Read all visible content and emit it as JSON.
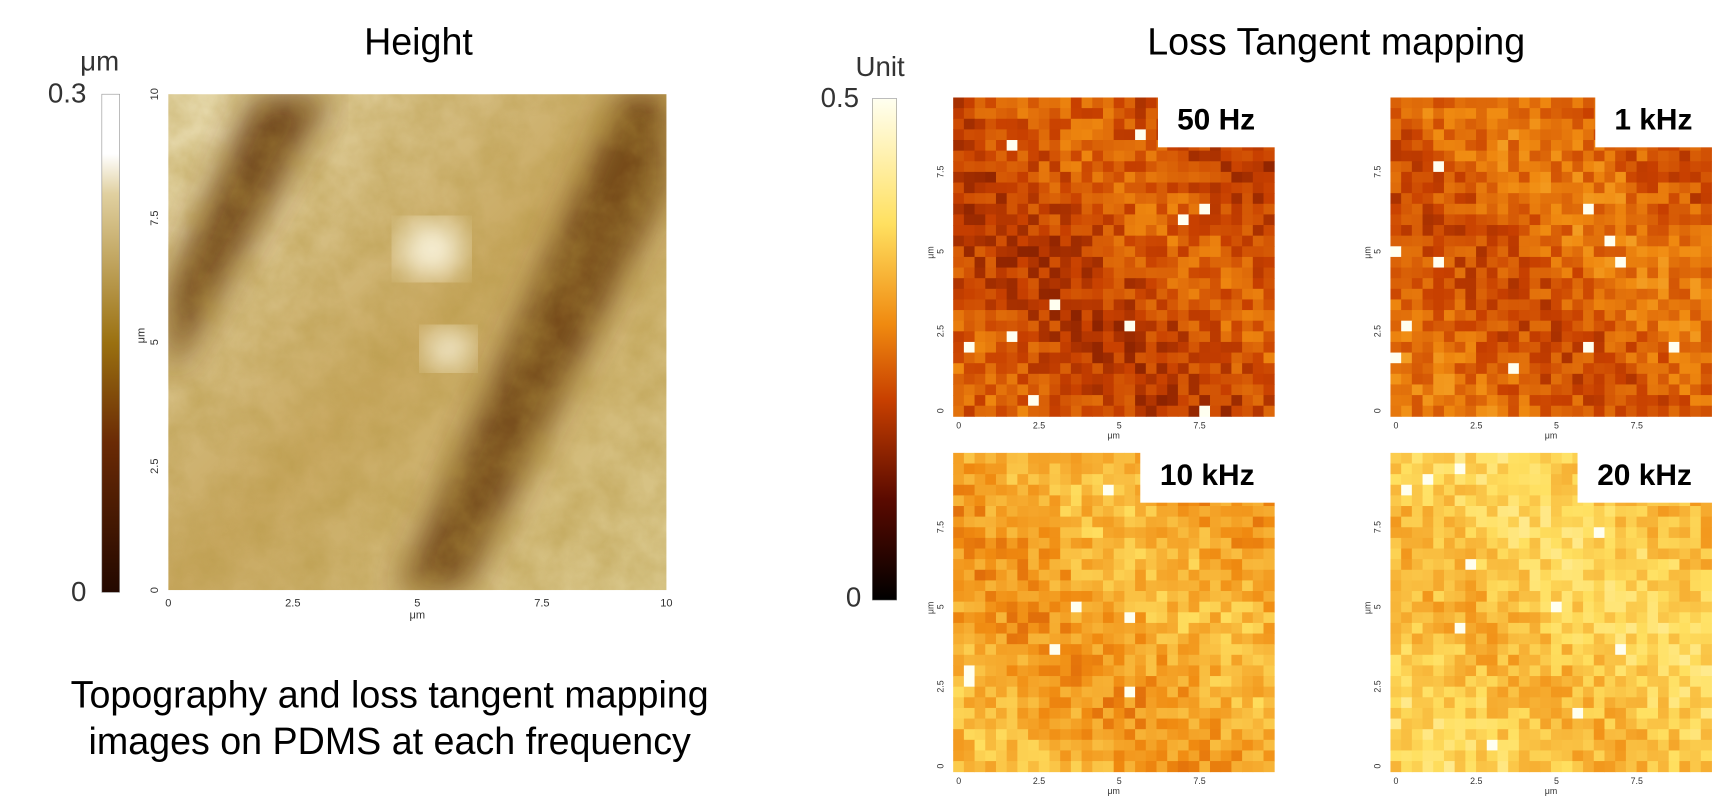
{
  "height_panel": {
    "title": "Height",
    "colorbar": {
      "unit": "μm",
      "max": "0.3",
      "min": "0"
    },
    "ticks": [
      "0",
      "2.5",
      "5",
      "7.5",
      "10"
    ],
    "x_unit": "μm",
    "y_unit": "μm"
  },
  "loss_panel": {
    "title": "Loss Tangent mapping",
    "colorbar": {
      "unit": "Unit",
      "max": "0.5",
      "min": "0"
    },
    "maps": [
      {
        "label": "50 Hz"
      },
      {
        "label": "1 kHz"
      },
      {
        "label": "10 kHz"
      },
      {
        "label": "20 kHz"
      }
    ],
    "ticks": [
      "0",
      "2.5",
      "5",
      "7.5"
    ],
    "axis_unit": "μm"
  },
  "caption": [
    "Topography and loss tangent mapping",
    "images on PDMS at each frequency"
  ]
}
